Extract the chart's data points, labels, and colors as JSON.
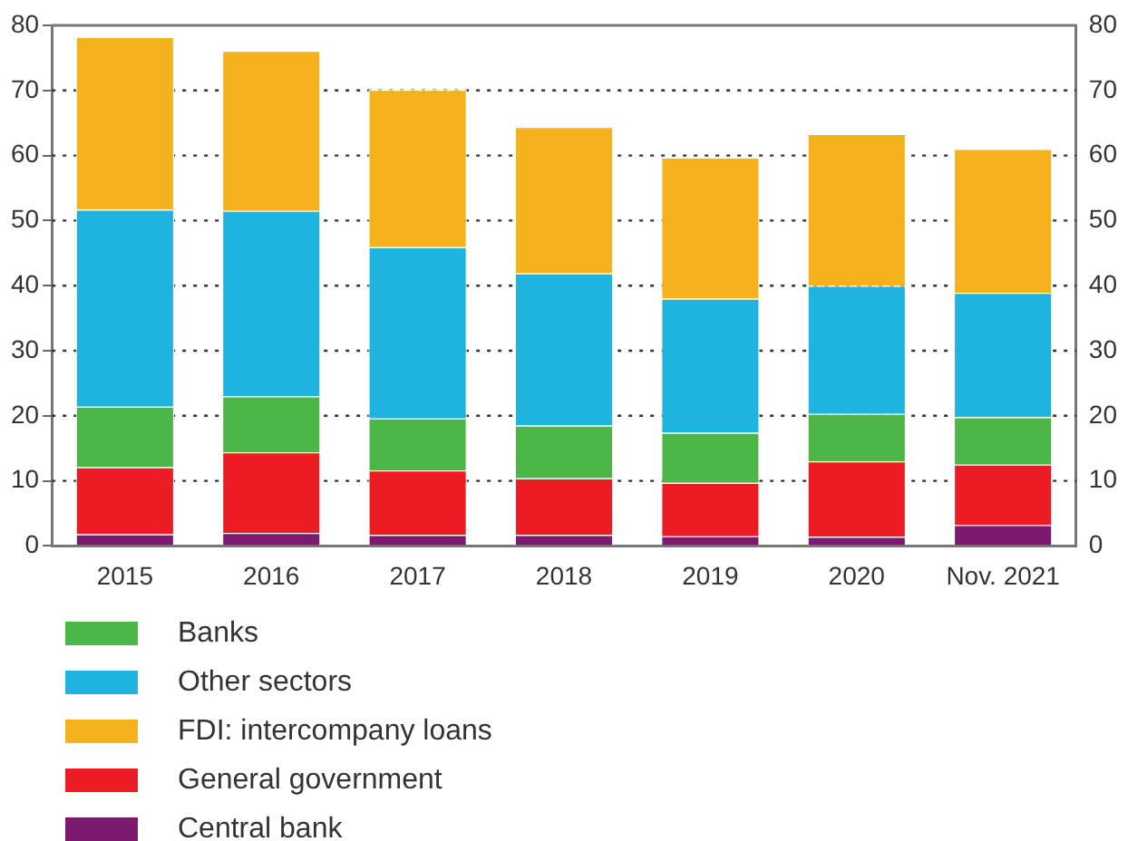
{
  "chart_data": {
    "type": "bar",
    "stacked": true,
    "categories": [
      "2015",
      "2016",
      "2017",
      "2018",
      "2019",
      "2020",
      "Nov. 2021"
    ],
    "series": [
      {
        "name": "Central bank",
        "color": "#7b1a6e",
        "values": [
          1.8,
          2.0,
          1.7,
          1.7,
          1.5,
          1.4,
          3.2
        ]
      },
      {
        "name": "General government",
        "color": "#ec1c24",
        "values": [
          10.3,
          12.4,
          9.9,
          8.7,
          8.2,
          11.6,
          9.3
        ]
      },
      {
        "name": "Banks",
        "color": "#4cb748",
        "values": [
          9.3,
          8.6,
          8.0,
          8.1,
          7.7,
          7.3,
          7.3
        ]
      },
      {
        "name": "Other sectors",
        "color": "#1fb3e0",
        "values": [
          30.3,
          28.5,
          26.3,
          23.4,
          20.6,
          19.7,
          19.1
        ]
      },
      {
        "name": "FDI: intercompany loans",
        "color": "#f5b21d",
        "values": [
          26.5,
          24.6,
          24.2,
          22.5,
          21.7,
          23.3,
          22.1
        ]
      }
    ],
    "ylim": [
      0,
      80
    ],
    "yticks": [
      0,
      10,
      20,
      30,
      40,
      50,
      60,
      70,
      80
    ],
    "y2lim": [
      0,
      80
    ],
    "y2ticks": [
      0,
      10,
      20,
      30,
      40,
      50,
      60,
      70,
      80
    ],
    "grid": "y",
    "legend": "bottom"
  }
}
